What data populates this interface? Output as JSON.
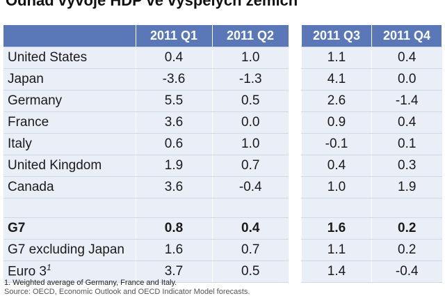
{
  "title": "Odhad vývoje HDP ve vyspělých zemích",
  "left_headers": [
    "2011 Q1",
    "2011 Q2"
  ],
  "right_headers": [
    "2011 Q3",
    "2011 Q4"
  ],
  "rows": [
    {
      "name": "United States",
      "q1": "0.4",
      "q2": "1.0",
      "q3": "1.1",
      "q4": "0.4"
    },
    {
      "name": "Japan",
      "q1": "-3.6",
      "q2": "-1.3",
      "q3": "4.1",
      "q4": "0.0"
    },
    {
      "name": "Germany",
      "q1": "5.5",
      "q2": "0.5",
      "q3": "2.6",
      "q4": "-1.4"
    },
    {
      "name": "France",
      "q1": "3.6",
      "q2": "0.0",
      "q3": "0.9",
      "q4": "0.4"
    },
    {
      "name": "Italy",
      "q1": "0.6",
      "q2": "1.0",
      "q3": "-0.1",
      "q4": "0.1"
    },
    {
      "name": "United Kingdom",
      "q1": "1.9",
      "q2": "0.7",
      "q3": "0.4",
      "q4": "0.3"
    },
    {
      "name": "Canada",
      "q1": "3.6",
      "q2": "-0.4",
      "q3": "1.0",
      "q4": "1.9"
    }
  ],
  "summary_rows": [
    {
      "name": "G7",
      "q1": "0.8",
      "q2": "0.4",
      "q3": "1.6",
      "q4": "0.2",
      "bold": true
    },
    {
      "name": "G7 excluding Japan",
      "q1": "1.6",
      "q2": "0.7",
      "q3": "1.1",
      "q4": "0.2"
    },
    {
      "name": "Euro 3",
      "name_sup": "1",
      "q1": "3.7",
      "q2": "0.5",
      "q3": "1.4",
      "q4": "-0.4"
    }
  ],
  "footnote": "1.   Weighted average of Germany, France and Italy.",
  "footnote_2": "Source: OECD, Economic Outlook and OECD Indicator Model forecasts."
}
